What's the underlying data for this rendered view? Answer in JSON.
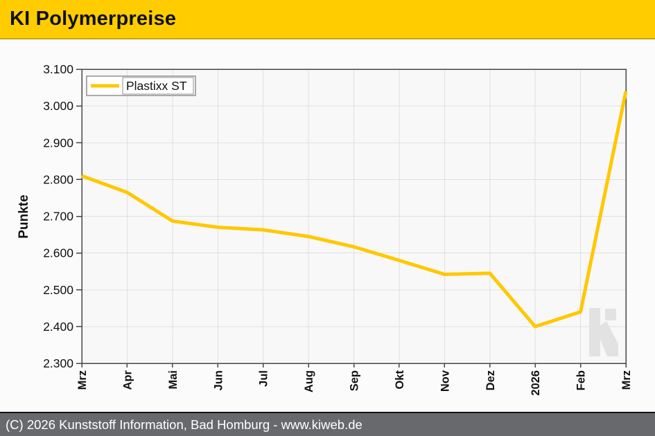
{
  "header": {
    "title": "KI Polymerpreise",
    "background": "#FFCC00"
  },
  "footer": {
    "text": "(C) 2026 Kunststoff Information, Bad Homburg - www.kiweb.de",
    "background": "#68696D"
  },
  "watermark": {
    "icon": "ki-logo-k-icon",
    "color": "#E2E2E2"
  },
  "chart_data": {
    "type": "line",
    "title": "",
    "xlabel": "",
    "ylabel": "Punkte",
    "categories": [
      "Mrz",
      "Apr",
      "Mai",
      "Jun",
      "Jul",
      "Aug",
      "Sep",
      "Okt",
      "Nov",
      "Dez",
      "2026",
      "Feb",
      "Mrz"
    ],
    "series": [
      {
        "name": "Plastixx ST",
        "color": "#FFC800",
        "values": [
          2810,
          2765,
          2687,
          2670,
          2663,
          2645,
          2617,
          2580,
          2542,
          2545,
          2400,
          2440,
          3040
        ]
      }
    ],
    "ylim": [
      2300,
      3100
    ],
    "ytick_step": 100,
    "ytick_labels": [
      "2.300",
      "2.400",
      "2.500",
      "2.600",
      "2.700",
      "2.800",
      "2.900",
      "3.000",
      "3.100"
    ],
    "grid": true,
    "legend_position": "top-left",
    "colors": {
      "plot_background": "#F8F8F8",
      "gridline": "#E0E0E0",
      "axis_border": "#454545",
      "tick_label": "#111111",
      "legend_border": "#8F8F8F"
    }
  }
}
